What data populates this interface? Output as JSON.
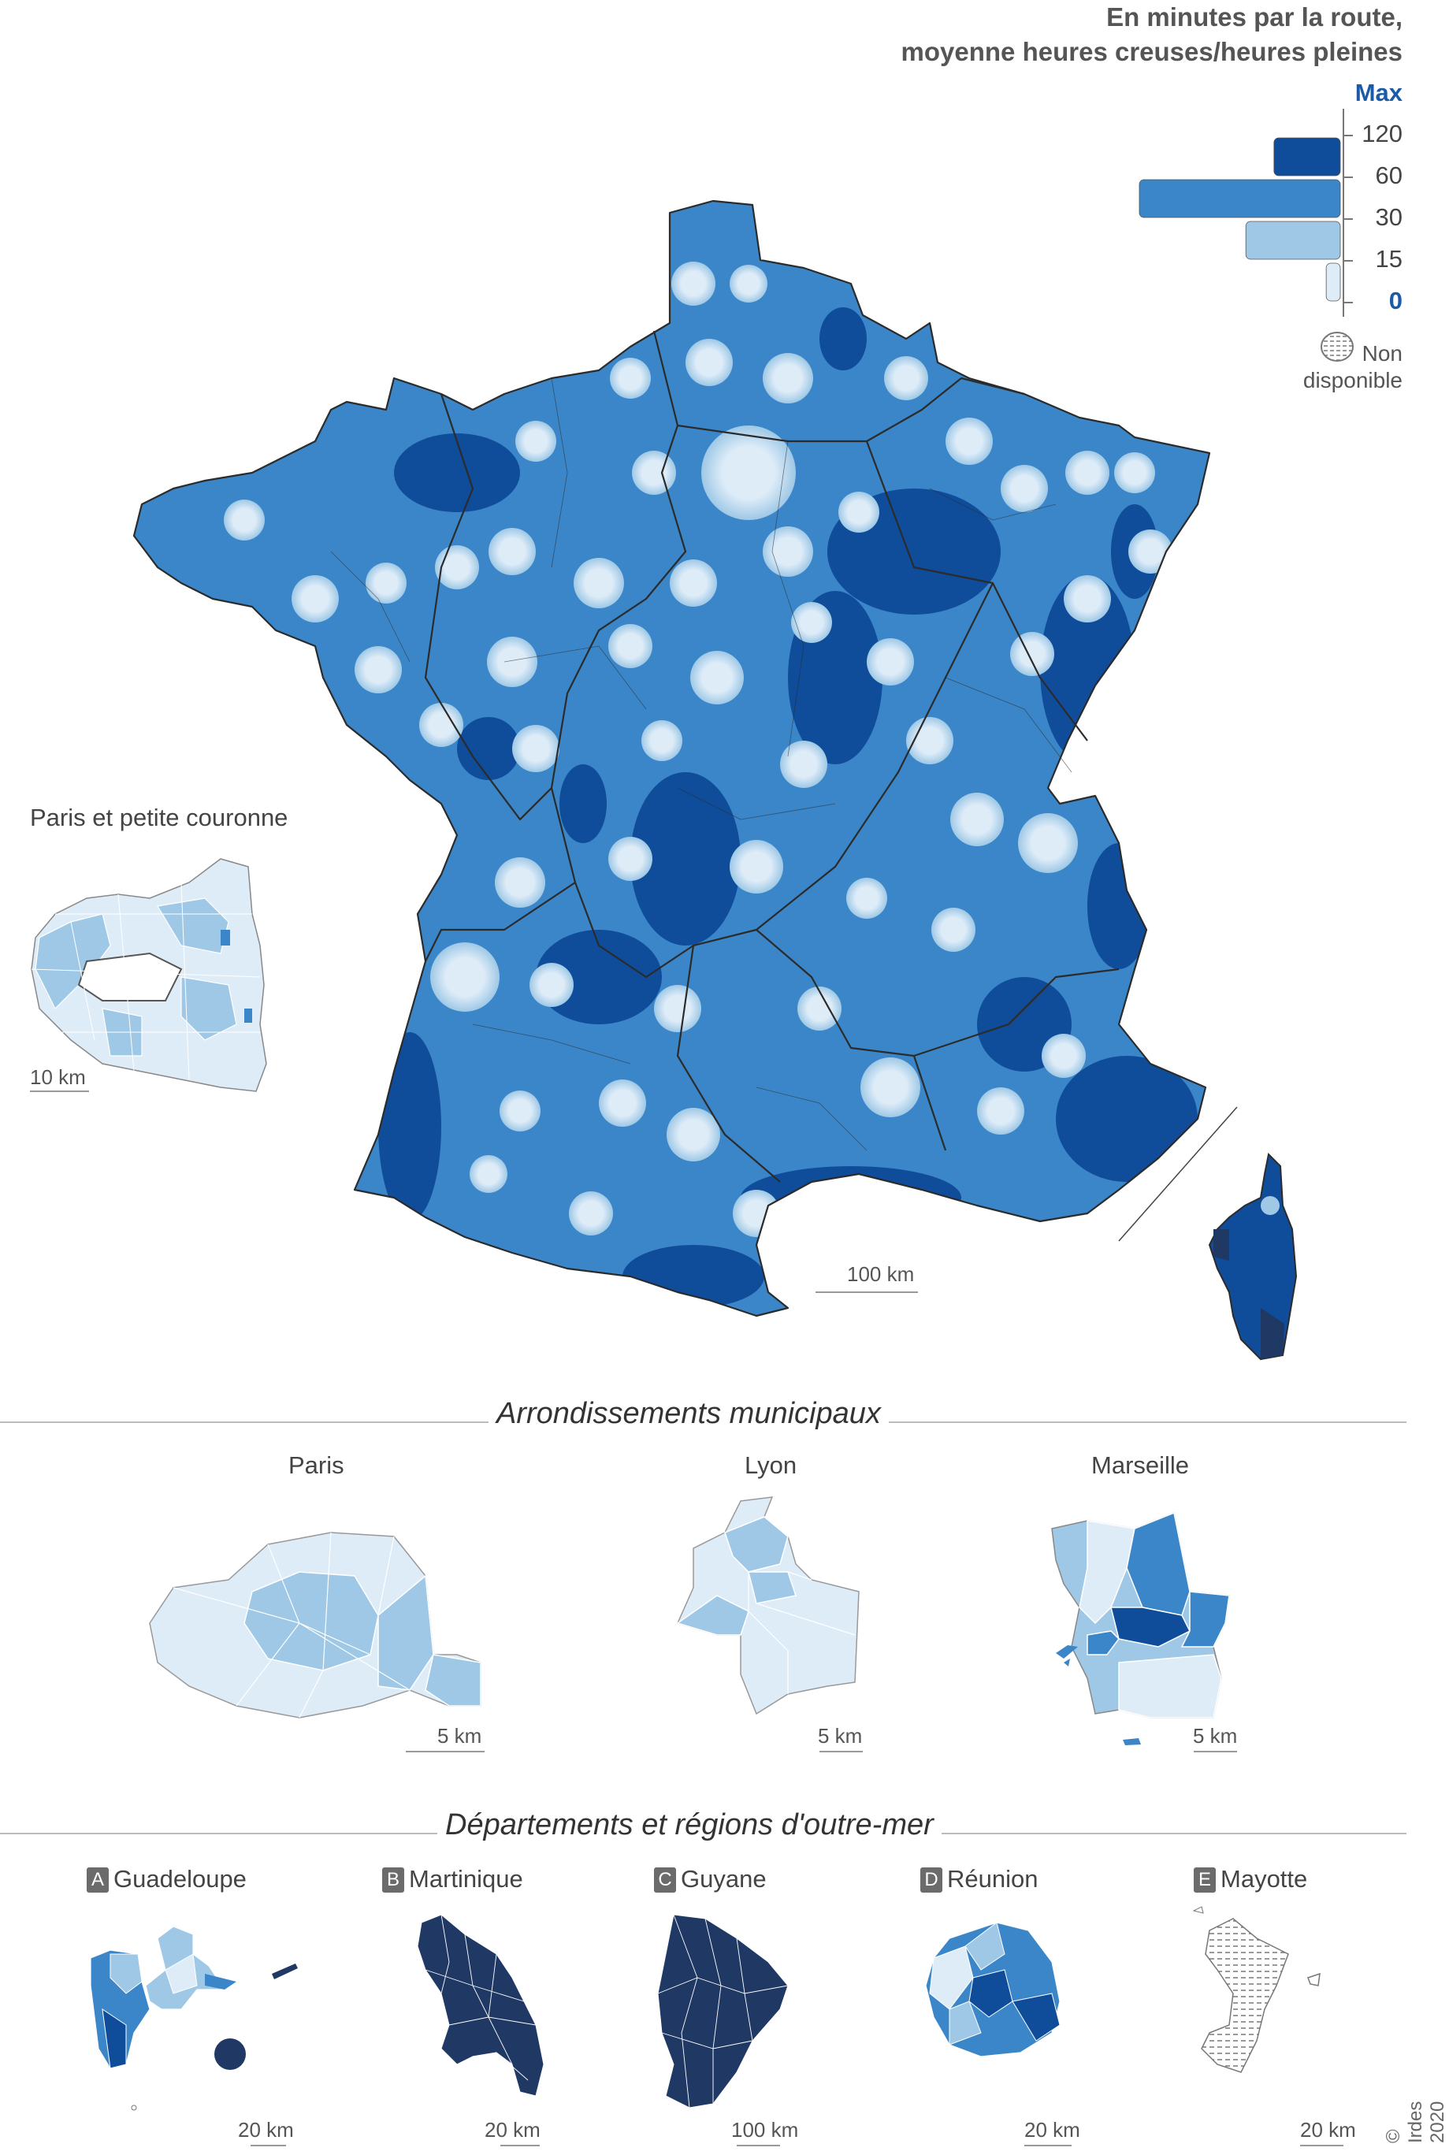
{
  "legend": {
    "title_line1": "En minutes par la route,",
    "title_line2": "moyenne heures creuses/heures pleines",
    "max_label": "Max",
    "ticks": [
      "120",
      "60",
      "30",
      "15",
      "0"
    ],
    "bins": [
      {
        "range": "60–120",
        "share": 0.33,
        "color": "#0f4c9a"
      },
      {
        "range": "30–60",
        "share": 1.0,
        "color": "#3a86c8"
      },
      {
        "range": "15–30",
        "share": 0.47,
        "color": "#9ec8e6"
      },
      {
        "range": "0–15",
        "share": 0.07,
        "color": "#deecf8"
      }
    ],
    "na_label_line1": "Non",
    "na_label_line2": "disponible"
  },
  "main_map": {
    "scale_label": "100 km"
  },
  "inset_paris_couronne": {
    "title": "Paris et petite couronne",
    "scale_label": "10 km"
  },
  "arrondissements": {
    "section_title": "Arrondissements municipaux",
    "maps": [
      {
        "name": "Paris",
        "scale_label": "5 km"
      },
      {
        "name": "Lyon",
        "scale_label": "5 km"
      },
      {
        "name": "Marseille",
        "scale_label": "5 km"
      }
    ]
  },
  "outre_mer": {
    "section_title": "Départements et régions d'outre-mer",
    "maps": [
      {
        "letter": "A",
        "name": "Guadeloupe",
        "scale_label": "20 km"
      },
      {
        "letter": "B",
        "name": "Martinique",
        "scale_label": "20 km"
      },
      {
        "letter": "C",
        "name": "Guyane",
        "scale_label": "100 km"
      },
      {
        "letter": "D",
        "name": "Réunion",
        "scale_label": "20 km"
      },
      {
        "letter": "E",
        "name": "Mayotte",
        "scale_label": "20 km"
      }
    ]
  },
  "credit": "© Irdes 2020",
  "colors": {
    "class_0_15": "#deecf8",
    "class_15_30": "#9ec8e6",
    "class_30_60": "#3a86c8",
    "class_60_120": "#0f4c9a",
    "class_max": "#1f3864",
    "borders": "#2b2b2b"
  }
}
